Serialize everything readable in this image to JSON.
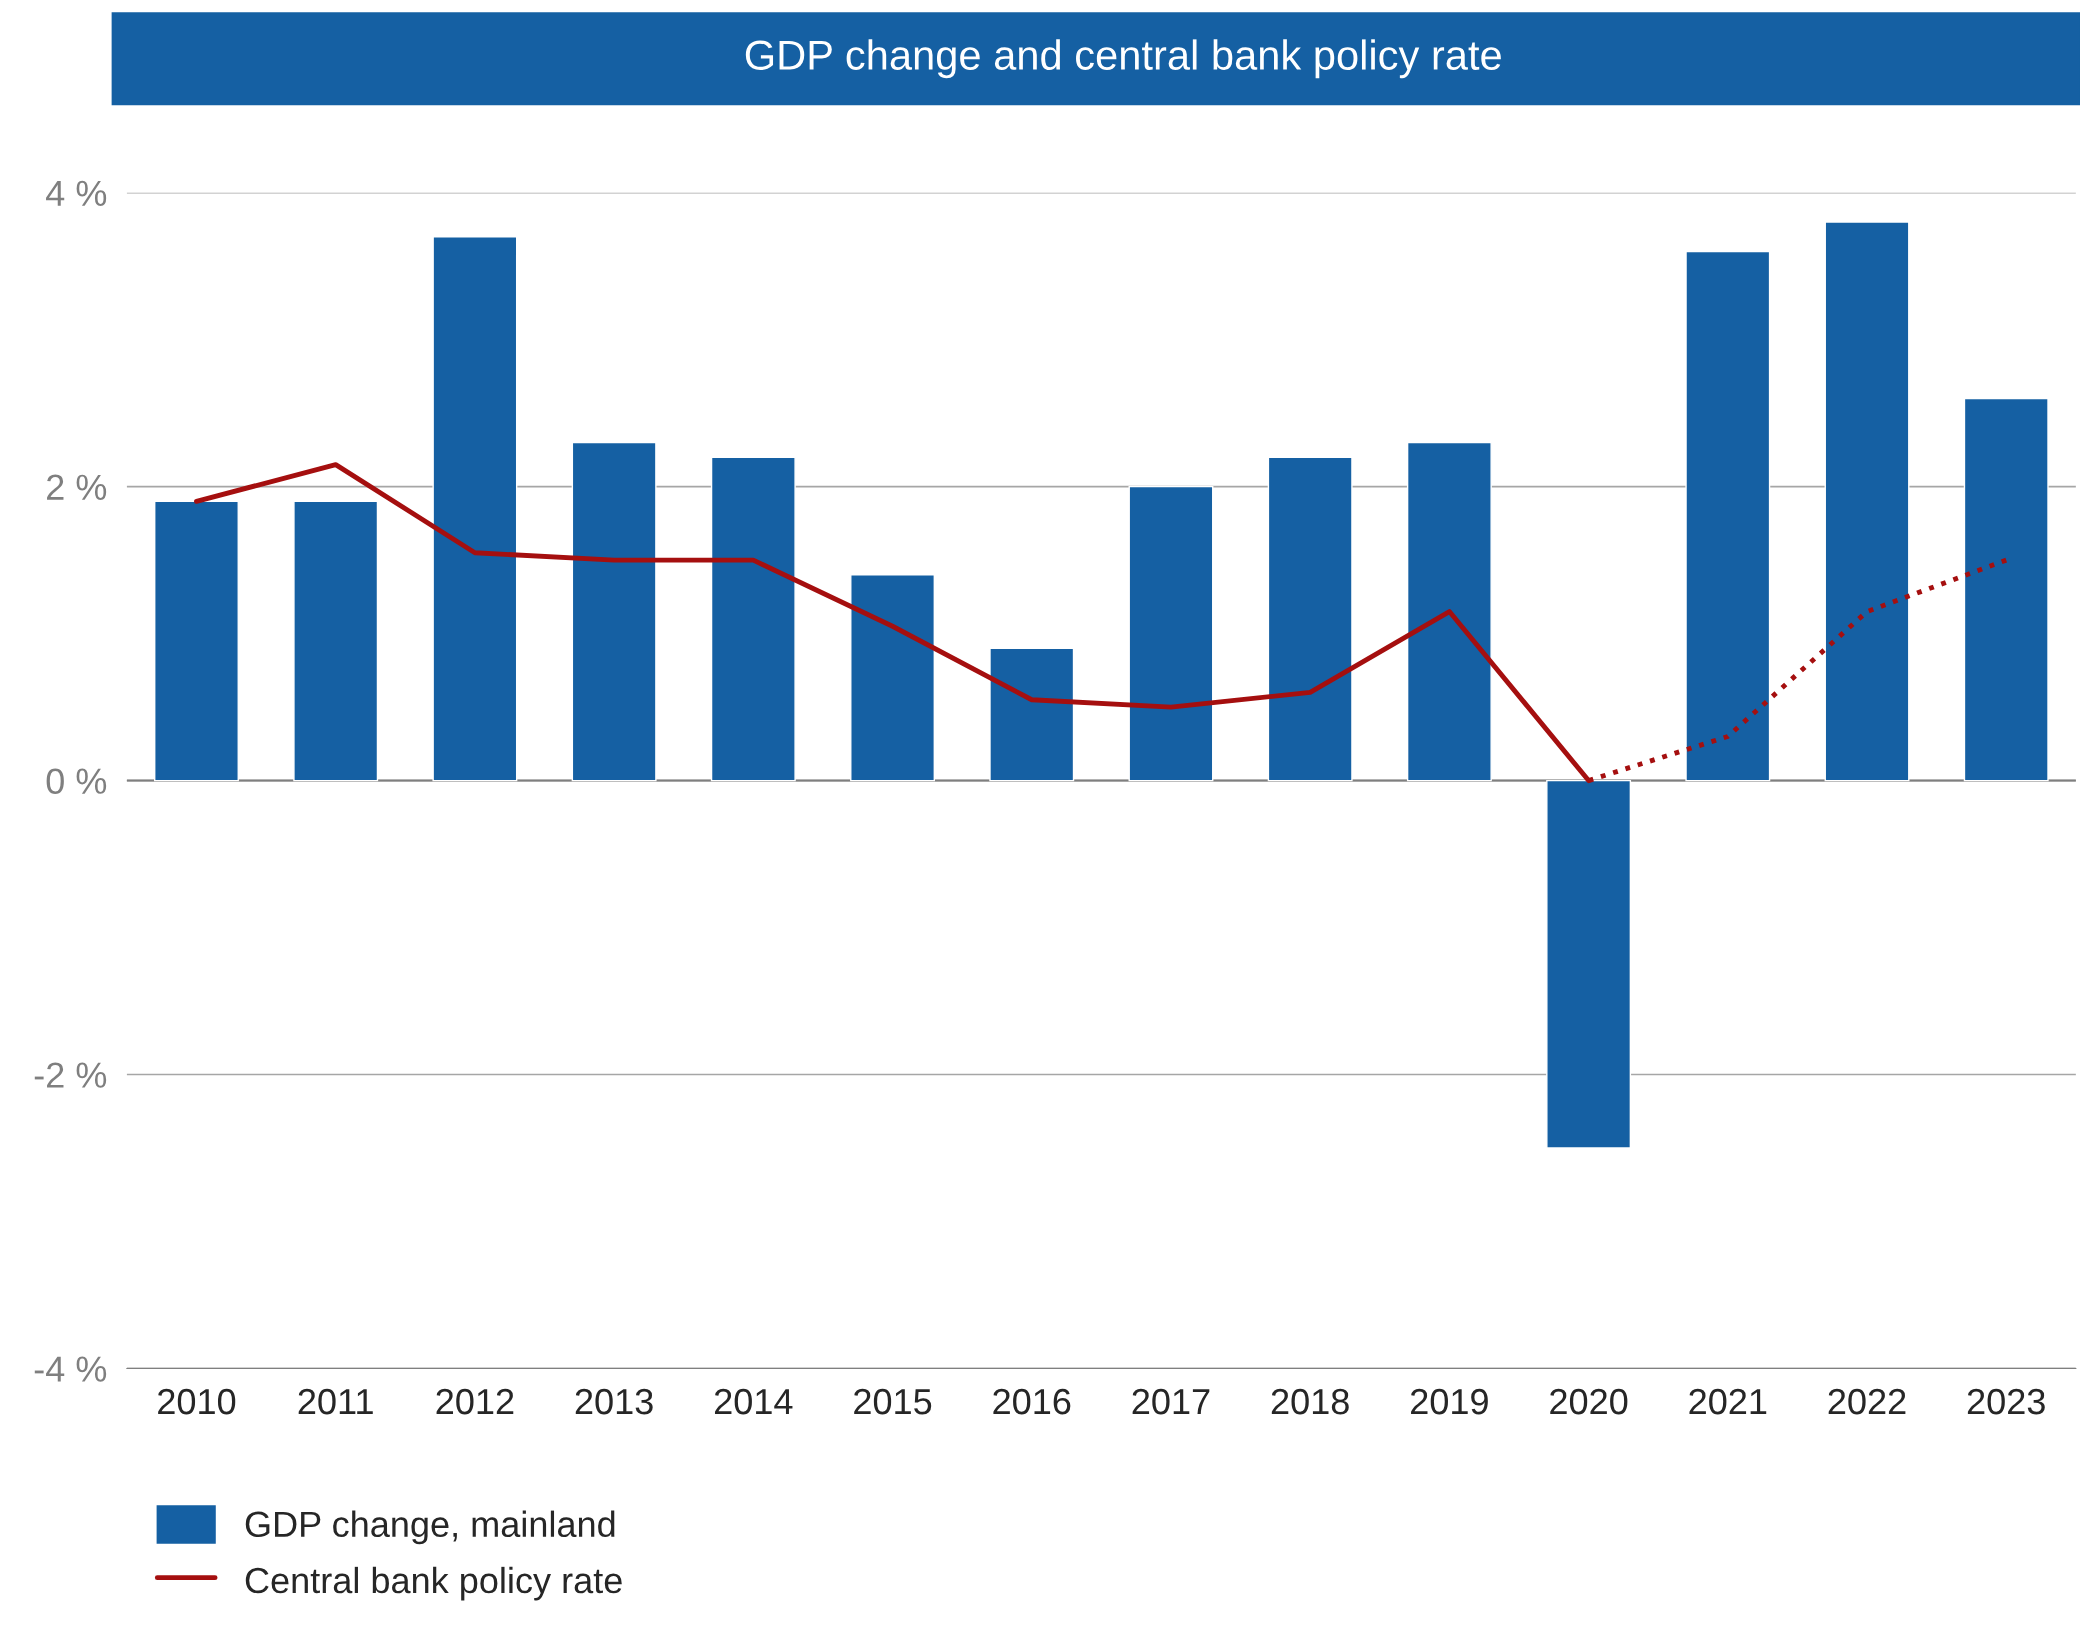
{
  "chart_data": {
    "type": "bar",
    "title": "GDP change and central bank policy rate",
    "categories": [
      "2010",
      "2011",
      "2012",
      "2013",
      "2014",
      "2015",
      "2016",
      "2017",
      "2018",
      "2019",
      "2020",
      "2021",
      "2022",
      "2023"
    ],
    "series": [
      {
        "name": "GDP change, mainland",
        "color": "#1560a3",
        "values": [
          1.9,
          1.9,
          3.7,
          2.3,
          2.2,
          1.4,
          0.9,
          2.0,
          2.2,
          2.3,
          -2.5,
          3.6,
          3.8,
          2.6
        ]
      },
      {
        "name": "Central bank policy rate",
        "type": "line",
        "color": "#a50f0f",
        "line_style": "solid",
        "values": [
          1.9,
          2.15,
          1.55,
          1.5,
          1.5,
          1.05,
          0.55,
          0.5,
          0.6,
          1.15,
          0,
          null,
          null,
          null
        ]
      },
      {
        "type": "line",
        "color": "#a50f0f",
        "line_style": "dotted",
        "values": [
          null,
          null,
          null,
          null,
          null,
          null,
          null,
          null,
          null,
          null,
          0,
          0.3,
          1.15,
          1.5
        ]
      }
    ],
    "ylim": [
      -4,
      4
    ],
    "yticks": [
      {
        "value": -4,
        "label": "-4 %"
      },
      {
        "value": -2,
        "label": "-2 %"
      },
      {
        "value": 0,
        "label": "0 %"
      },
      {
        "value": 2,
        "label": "2 %"
      },
      {
        "value": 4,
        "label": "4 %"
      }
    ],
    "grid": "y",
    "legend": "bottom",
    "marker": "none"
  }
}
